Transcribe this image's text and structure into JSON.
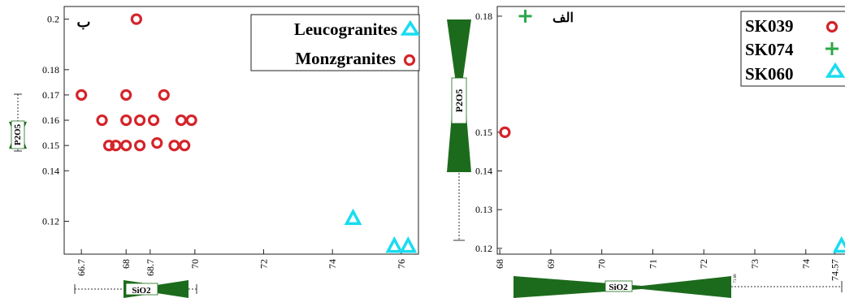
{
  "chart_data": [
    {
      "type": "scatter",
      "panel_label": "ب",
      "xlabel": "SiO2",
      "ylabel": "P2O5",
      "xlim": [
        66.2,
        76.5
      ],
      "ylim": [
        0.107,
        0.205
      ],
      "x_ticks": [
        "66.7",
        "68",
        "68.7",
        "70",
        "72",
        "74",
        "76"
      ],
      "x_tick_values": [
        66.7,
        68,
        68.7,
        70,
        72,
        74,
        76
      ],
      "y_ticks": [
        "0.2",
        "0.18",
        "0.17",
        "0.16",
        "0.15",
        "0.14",
        "0.12"
      ],
      "y_tick_values": [
        0.2,
        0.18,
        0.17,
        0.16,
        0.15,
        0.14,
        0.12
      ],
      "legend_position": "top-right",
      "series": [
        {
          "name": "Leucogranites",
          "marker": "triangle",
          "color": "#19dcf0",
          "points": [
            [
              74.6,
              0.121
            ],
            [
              75.8,
              0.11
            ],
            [
              76.2,
              0.11
            ]
          ]
        },
        {
          "name": "Monzgranites",
          "marker": "circle",
          "color": "#d4242a",
          "points": [
            [
              66.7,
              0.17
            ],
            [
              67.3,
              0.16
            ],
            [
              67.5,
              0.15
            ],
            [
              67.7,
              0.15
            ],
            [
              68.0,
              0.17
            ],
            [
              68.0,
              0.16
            ],
            [
              68.0,
              0.15
            ],
            [
              68.3,
              0.2
            ],
            [
              68.4,
              0.16
            ],
            [
              68.4,
              0.15
            ],
            [
              68.8,
              0.16
            ],
            [
              68.9,
              0.151
            ],
            [
              69.1,
              0.17
            ],
            [
              69.4,
              0.15
            ],
            [
              69.6,
              0.16
            ],
            [
              69.7,
              0.15
            ],
            [
              69.9,
              0.16
            ]
          ]
        }
      ]
    },
    {
      "type": "scatter",
      "panel_label": "الف",
      "xlabel": "SiO2",
      "ylabel": "P2O5",
      "xlim": [
        67.95,
        74.8
      ],
      "ylim": [
        0.1185,
        0.1825
      ],
      "x_ticks": [
        "68",
        "69",
        "70",
        "71",
        "72",
        "73",
        "74",
        "74.57"
      ],
      "x_tick_values": [
        68,
        69,
        70,
        71,
        72,
        73,
        74,
        74.57
      ],
      "y_ticks": [
        "0.18",
        "0.15",
        "0.14",
        "0.13",
        "0.12"
      ],
      "y_tick_values": [
        0.18,
        0.15,
        0.14,
        0.13,
        0.12
      ],
      "box_value_label": "71.68",
      "legend_position": "top-right",
      "series": [
        {
          "name": "SK039",
          "marker": "circle",
          "color": "#d4242a",
          "points": [
            [
              68.1,
              0.15
            ]
          ]
        },
        {
          "name": "SK074",
          "marker": "plus",
          "color": "#2ca84a",
          "points": [
            [
              68.5,
              0.18
            ]
          ]
        },
        {
          "name": "SK060",
          "marker": "triangle",
          "color": "#19dcf0",
          "points": [
            [
              74.7,
              0.1205
            ]
          ]
        }
      ]
    }
  ]
}
